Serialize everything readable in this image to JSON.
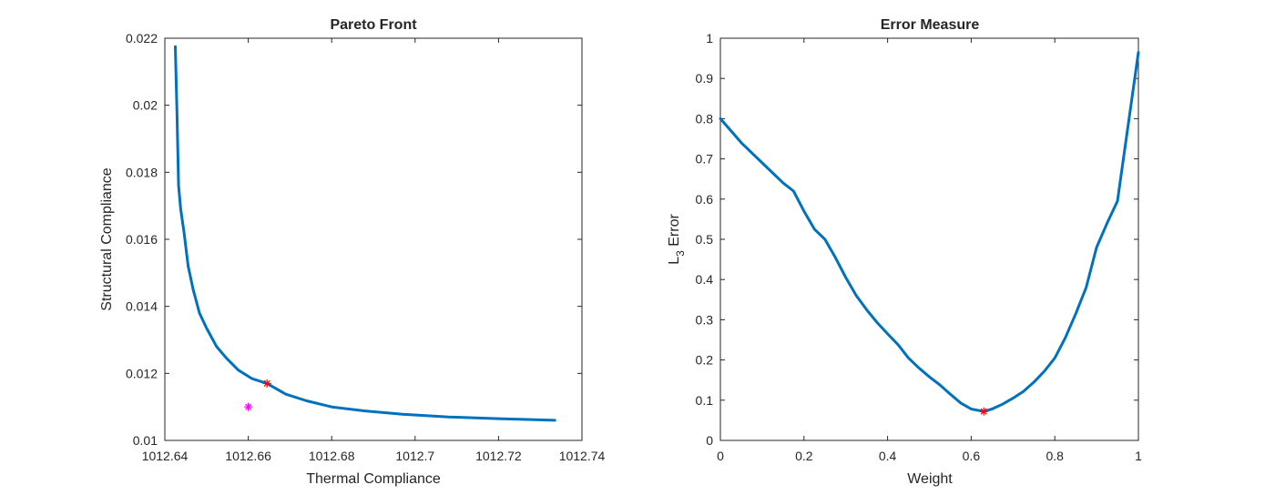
{
  "chart_data": [
    {
      "type": "line",
      "title": "Pareto Front",
      "xlabel": "Thermal Compliance",
      "ylabel": "Structural Compliance",
      "xlim": [
        1012.64,
        1012.74
      ],
      "ylim": [
        0.01,
        0.022
      ],
      "xticks": [
        1012.64,
        1012.66,
        1012.68,
        1012.7,
        1012.72,
        1012.74
      ],
      "xtick_labels": [
        "1012.64",
        "1012.66",
        "1012.68",
        "1012.7",
        "1012.72",
        "1012.74"
      ],
      "yticks": [
        0.01,
        0.012,
        0.014,
        0.016,
        0.018,
        0.02,
        0.022
      ],
      "ytick_labels": [
        "0.01",
        "0.012",
        "0.014",
        "0.016",
        "0.018",
        "0.02",
        "0.022"
      ],
      "grid": false,
      "series": [
        {
          "color": "#0072bd",
          "x": [
            1012.6425,
            1012.6429,
            1012.6433,
            1012.6438,
            1012.6446,
            1012.6456,
            1012.6468,
            1012.6483,
            1012.65,
            1012.6524,
            1012.6548,
            1012.6576,
            1012.6608,
            1012.6645,
            1012.669,
            1012.674,
            1012.68,
            1012.688,
            1012.697,
            1012.708,
            1012.72,
            1012.7335
          ],
          "y": [
            0.02175,
            0.0198,
            0.0176,
            0.0169,
            0.0162,
            0.0152,
            0.0145,
            0.0138,
            0.01335,
            0.0128,
            0.01245,
            0.0121,
            0.01185,
            0.0117,
            0.01138,
            0.01118,
            0.011,
            0.01088,
            0.01078,
            0.0107,
            0.01065,
            0.0106
          ]
        }
      ],
      "markers": [
        {
          "x": 1012.6645,
          "y": 0.0117,
          "color": "#ff0000",
          "symbol": "asterisk"
        },
        {
          "x": 1012.66,
          "y": 0.011,
          "color": "#ff00ff",
          "symbol": "asterisk"
        }
      ]
    },
    {
      "type": "line",
      "title": "Error Measure",
      "xlabel": "Weight",
      "ylabel_main": "L",
      "ylabel_sub": "3",
      "ylabel_rest": " Error",
      "xlim": [
        0,
        1
      ],
      "ylim": [
        0,
        1
      ],
      "xticks": [
        0,
        0.2,
        0.4,
        0.6,
        0.8,
        1
      ],
      "xtick_labels": [
        "0",
        "0.2",
        "0.4",
        "0.6",
        "0.8",
        "1"
      ],
      "yticks": [
        0,
        0.1,
        0.2,
        0.3,
        0.4,
        0.5,
        0.6,
        0.7,
        0.8,
        0.9,
        1
      ],
      "ytick_labels": [
        "0",
        "0.1",
        "0.2",
        "0.3",
        "0.4",
        "0.5",
        "0.6",
        "0.7",
        "0.8",
        "0.9",
        "1"
      ],
      "grid": false,
      "series": [
        {
          "color": "#0072bd",
          "x": [
            0,
            0.05,
            0.1,
            0.15,
            0.175,
            0.2,
            0.225,
            0.25,
            0.275,
            0.3,
            0.325,
            0.35,
            0.375,
            0.4,
            0.425,
            0.45,
            0.475,
            0.5,
            0.525,
            0.55,
            0.575,
            0.6,
            0.63,
            0.65,
            0.675,
            0.7,
            0.725,
            0.75,
            0.775,
            0.8,
            0.825,
            0.85,
            0.875,
            0.9,
            0.925,
            0.95,
            0.975,
            1
          ],
          "y": [
            0.8,
            0.74,
            0.69,
            0.64,
            0.62,
            0.57,
            0.525,
            0.5,
            0.455,
            0.405,
            0.36,
            0.325,
            0.293,
            0.265,
            0.238,
            0.205,
            0.18,
            0.158,
            0.138,
            0.115,
            0.093,
            0.078,
            0.072,
            0.078,
            0.09,
            0.105,
            0.122,
            0.145,
            0.172,
            0.205,
            0.255,
            0.315,
            0.38,
            0.48,
            0.54,
            0.595,
            0.78,
            0.965
          ]
        }
      ],
      "markers": [
        {
          "x": 0.63,
          "y": 0.072,
          "color": "#ff0000",
          "symbol": "asterisk"
        }
      ]
    }
  ]
}
